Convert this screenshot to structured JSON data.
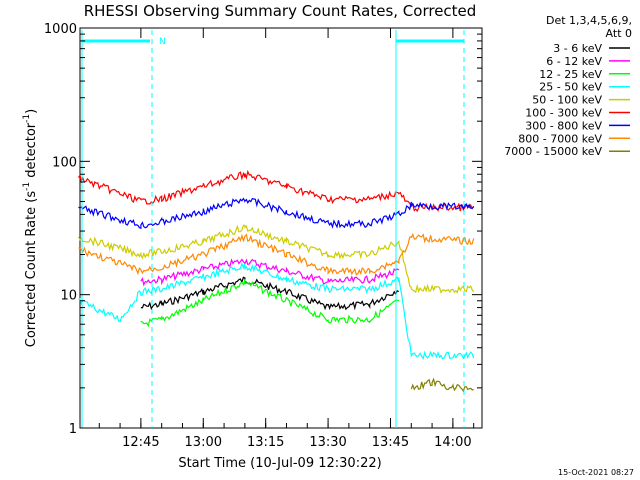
{
  "chart_data": {
    "type": "line",
    "title": "RHESSI Observing Summary Count Rates, Corrected",
    "xlabel": "Start Time (10-Jul-09 12:30:22)",
    "ylabel_prefix": "Corrected Count Rate (s",
    "ylabel_mid": " detector",
    "ylabel_suffix": ")",
    "ylabel_exponent": "-1",
    "yscale": "log",
    "xlim": [
      "12:30:22",
      "14:07:00"
    ],
    "ylim": [
      1,
      1000
    ],
    "x_ticks": [
      "12:45",
      "13:00",
      "13:15",
      "13:30",
      "13:45",
      "14:00"
    ],
    "y_ticks": [
      "1",
      "10",
      "100",
      "1000"
    ],
    "legend_header": [
      "Det 1,3,4,5,6,9,",
      "Att 0"
    ],
    "legend_placement": "right",
    "series": [
      {
        "name": "3 - 6 keV",
        "color": "#000000",
        "t": [
          "12:45",
          "12:50",
          "13:00",
          "13:10",
          "13:20",
          "13:30",
          "13:40",
          "13:47"
        ],
        "y": [
          8.0,
          8.5,
          10.5,
          13.0,
          10.5,
          8.0,
          8.5,
          11.0
        ]
      },
      {
        "name": "6 - 12 keV",
        "color": "#ff00ff",
        "t": [
          "12:45",
          "12:50",
          "13:00",
          "13:10",
          "13:20",
          "13:30",
          "13:40",
          "13:47"
        ],
        "y": [
          12.5,
          13.0,
          15.5,
          18.0,
          15.0,
          12.5,
          13.0,
          15.0
        ]
      },
      {
        "name": "12 - 25 keV",
        "color": "#00ff00",
        "t": [
          "12:45",
          "12:50",
          "13:00",
          "13:10",
          "13:20",
          "13:30",
          "13:40",
          "13:47"
        ],
        "y": [
          6.0,
          6.5,
          9.0,
          12.5,
          9.0,
          6.5,
          6.5,
          9.0
        ]
      },
      {
        "name": "25 - 50 keV",
        "color": "#00ffff",
        "t": [
          "12:30",
          "12:40",
          "12:45",
          "12:50",
          "13:00",
          "13:10",
          "13:20",
          "13:30",
          "13:40",
          "13:47",
          "13:50",
          "14:05"
        ],
        "y": [
          9.0,
          6.5,
          10.5,
          11.0,
          13.5,
          16.5,
          13.0,
          11.0,
          11.0,
          13.0,
          3.5,
          3.5
        ]
      },
      {
        "name": "50 - 100 keV",
        "color": "#cccc00",
        "t": [
          "12:30",
          "12:45",
          "12:50",
          "13:00",
          "13:10",
          "13:20",
          "13:30",
          "13:40",
          "13:47",
          "13:50",
          "14:05"
        ],
        "y": [
          27.0,
          20.0,
          21.0,
          25.0,
          32.0,
          25.0,
          20.0,
          20.0,
          25.0,
          11.0,
          11.0
        ]
      },
      {
        "name": "100 - 300 keV",
        "color": "#ff0000",
        "t": [
          "12:30",
          "12:45",
          "12:50",
          "13:00",
          "13:10",
          "13:20",
          "13:30",
          "13:40",
          "13:47",
          "13:50",
          "14:05"
        ],
        "y": [
          75.0,
          50.0,
          52.0,
          65.0,
          80.0,
          65.0,
          52.0,
          52.0,
          58.0,
          45.0,
          45.0
        ]
      },
      {
        "name": "300 - 800 keV",
        "color": "#0000ff",
        "t": [
          "12:30",
          "12:45",
          "12:50",
          "13:00",
          "13:10",
          "13:20",
          "13:30",
          "13:40",
          "13:47",
          "13:50",
          "14:05"
        ],
        "y": [
          45.0,
          33.0,
          35.0,
          42.0,
          52.0,
          42.0,
          34.0,
          34.0,
          40.0,
          47.0,
          45.0
        ]
      },
      {
        "name": "800 - 7000 keV",
        "color": "#ff8800",
        "t": [
          "12:30",
          "12:45",
          "12:50",
          "13:00",
          "13:10",
          "13:20",
          "13:30",
          "13:40",
          "13:47",
          "13:50",
          "14:05"
        ],
        "y": [
          22.0,
          15.0,
          16.0,
          20.0,
          27.0,
          20.0,
          15.0,
          15.0,
          18.0,
          27.0,
          25.0
        ]
      },
      {
        "name": "7000 - 15000 keV",
        "color": "#808000",
        "t": [
          "13:50",
          "13:55",
          "14:00",
          "14:05"
        ],
        "y": [
          2.0,
          2.2,
          2.0,
          2.0
        ]
      }
    ],
    "annotations": {
      "night_bar_label": "N",
      "timestamp": "15-Oct-2021 08:27"
    }
  }
}
